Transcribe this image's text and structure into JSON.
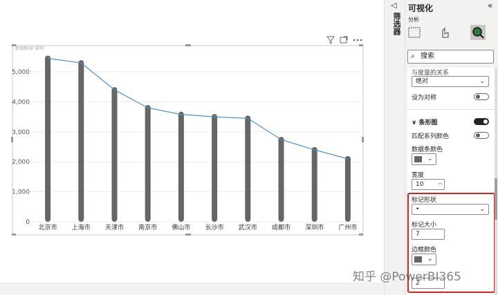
{
  "chart_data": {
    "type": "bar",
    "title": "数值图(按 城市)",
    "categories": [
      "北京市",
      "上海市",
      "天津市",
      "南京市",
      "佛山市",
      "长沙市",
      "武汉市",
      "成都市",
      "深圳市",
      "广州市"
    ],
    "values": [
      5450,
      5300,
      4400,
      3800,
      3580,
      3500,
      3450,
      2740,
      2400,
      2100
    ],
    "color": "#666666",
    "line_color": "#4a90c8",
    "ylim": [
      0,
      5600
    ],
    "yticks": [
      0,
      {
        "value": 1000,
        "label": "1,000"
      },
      {
        "value": 2000,
        "label": "2,000"
      },
      {
        "value": 3000,
        "label": "3,000"
      },
      {
        "value": 4000,
        "label": "4,000"
      },
      {
        "value": 5000,
        "label": "5,000"
      }
    ],
    "grid": true
  },
  "filters_pane": {
    "title": "筛选器"
  },
  "viz_pane": {
    "title": "可视化",
    "tab": "分析",
    "search_placeholder": "搜索",
    "relation_label": "与度量的关系",
    "relation_value": "绝对",
    "symmetric_label": "设为对称",
    "section": "条形图",
    "match_series_color": "匹配系列颜色",
    "bar_color_label": "数据条颜色",
    "width_label": "宽度",
    "width_value": 10,
    "marker_shape_label": "标记形状",
    "marker_shape_value": "•",
    "marker_size_label": "标记大小",
    "marker_size_value": 7,
    "border_color_label": "边框颜色",
    "border_width_value": 2
  },
  "watermark": "知乎 @PowerBI365"
}
